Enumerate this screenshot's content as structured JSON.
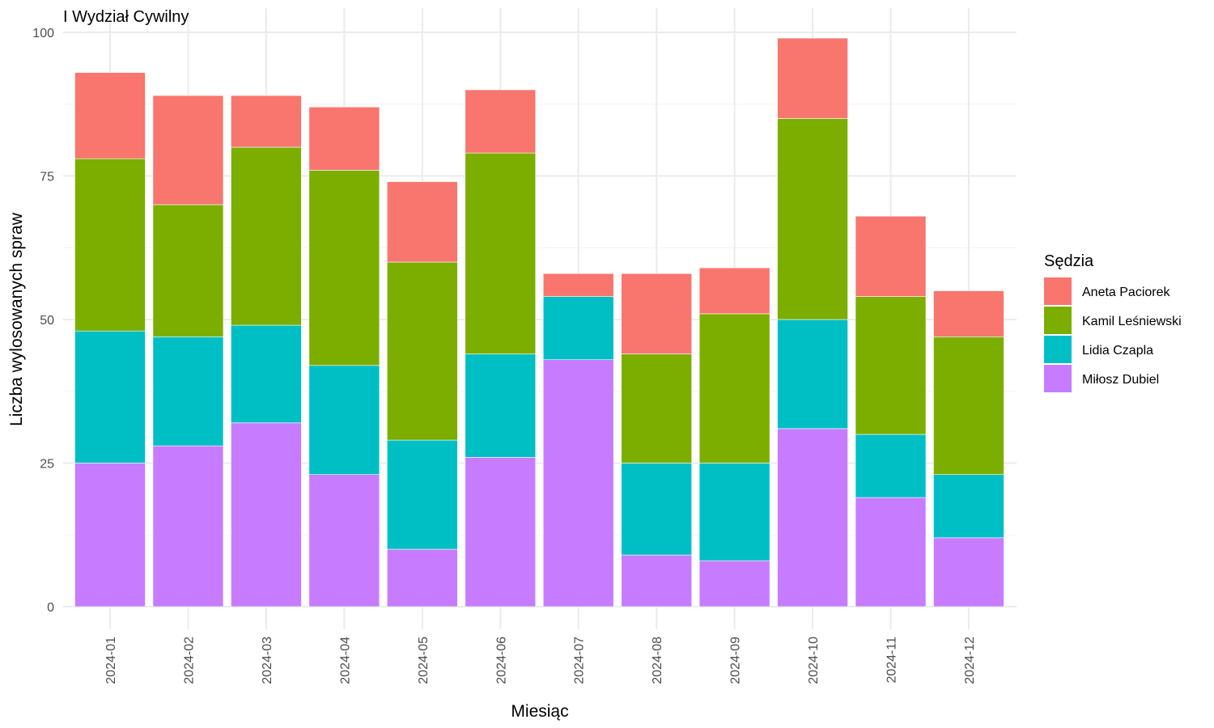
{
  "chart_data": {
    "type": "bar",
    "stacked": true,
    "title": "I Wydział Cywilny",
    "xlabel": "Miesiąc",
    "ylabel": "Liczba wylosowanych spraw",
    "ylim": [
      0,
      100
    ],
    "yticks": [
      0,
      25,
      50,
      75,
      100
    ],
    "grid": true,
    "legend_position": "right",
    "legend_title": "Sędzia",
    "categories": [
      "2024-01",
      "2024-02",
      "2024-03",
      "2024-04",
      "2024-05",
      "2024-06",
      "2024-07",
      "2024-08",
      "2024-09",
      "2024-10",
      "2024-11",
      "2024-12"
    ],
    "series": [
      {
        "name": "Miłosz Dubiel",
        "color": "#C77CFF",
        "values": [
          25,
          28,
          32,
          23,
          10,
          26,
          43,
          9,
          8,
          31,
          19,
          12
        ]
      },
      {
        "name": "Lidia Czapla",
        "color": "#00BFC4",
        "values": [
          23,
          19,
          17,
          19,
          19,
          18,
          11,
          16,
          17,
          19,
          11,
          11
        ]
      },
      {
        "name": "Kamil Leśniewski",
        "color": "#7CAE00",
        "values": [
          30,
          23,
          31,
          34,
          31,
          35,
          0,
          19,
          26,
          35,
          24,
          24
        ]
      },
      {
        "name": "Aneta Paciorek",
        "color": "#F8766D",
        "values": [
          15,
          19,
          9,
          11,
          14,
          11,
          4,
          14,
          8,
          14,
          14,
          8
        ]
      }
    ],
    "legend_order": [
      "Aneta Paciorek",
      "Kamil Leśniewski",
      "Lidia Czapla",
      "Miłosz Dubiel"
    ]
  }
}
